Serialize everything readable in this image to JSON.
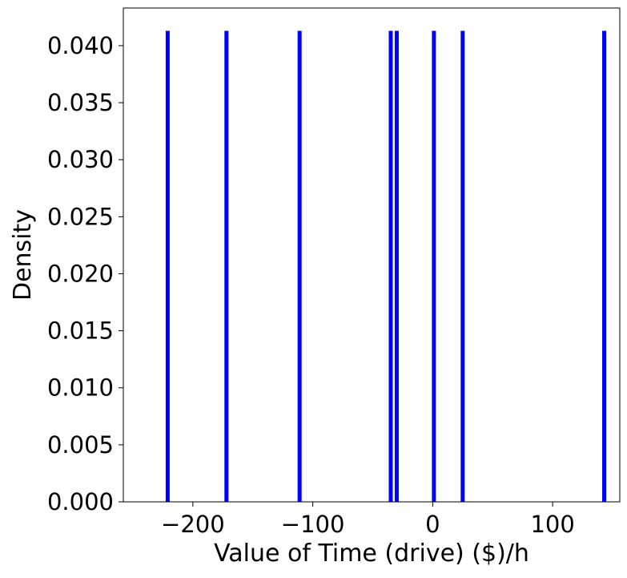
{
  "chart_data": {
    "type": "bar",
    "title": "",
    "xlabel": "Value of Time (drive) ($)/h",
    "ylabel": "Density",
    "xlim": [
      -258,
      156
    ],
    "ylim": [
      0,
      0.0433
    ],
    "bar_color": "#0000ff",
    "bar_width": 2.2,
    "x_ticks": [
      -200,
      -100,
      0,
      100
    ],
    "x_tick_labels": [
      "−200",
      "−100",
      "0",
      "100"
    ],
    "y_ticks": [
      0.0,
      0.005,
      0.01,
      0.015,
      0.02,
      0.025,
      0.03,
      0.035,
      0.04
    ],
    "y_tick_labels": [
      "0.000",
      "0.005",
      "0.010",
      "0.015",
      "0.020",
      "0.025",
      "0.030",
      "0.035",
      "0.040"
    ],
    "x": [
      -221,
      -172,
      -111,
      -35,
      -30,
      1,
      25,
      143
    ],
    "values": [
      0.0413,
      0.0413,
      0.0413,
      0.0413,
      0.0413,
      0.0413,
      0.0413,
      0.0413
    ],
    "grid": false,
    "legend": "none"
  }
}
